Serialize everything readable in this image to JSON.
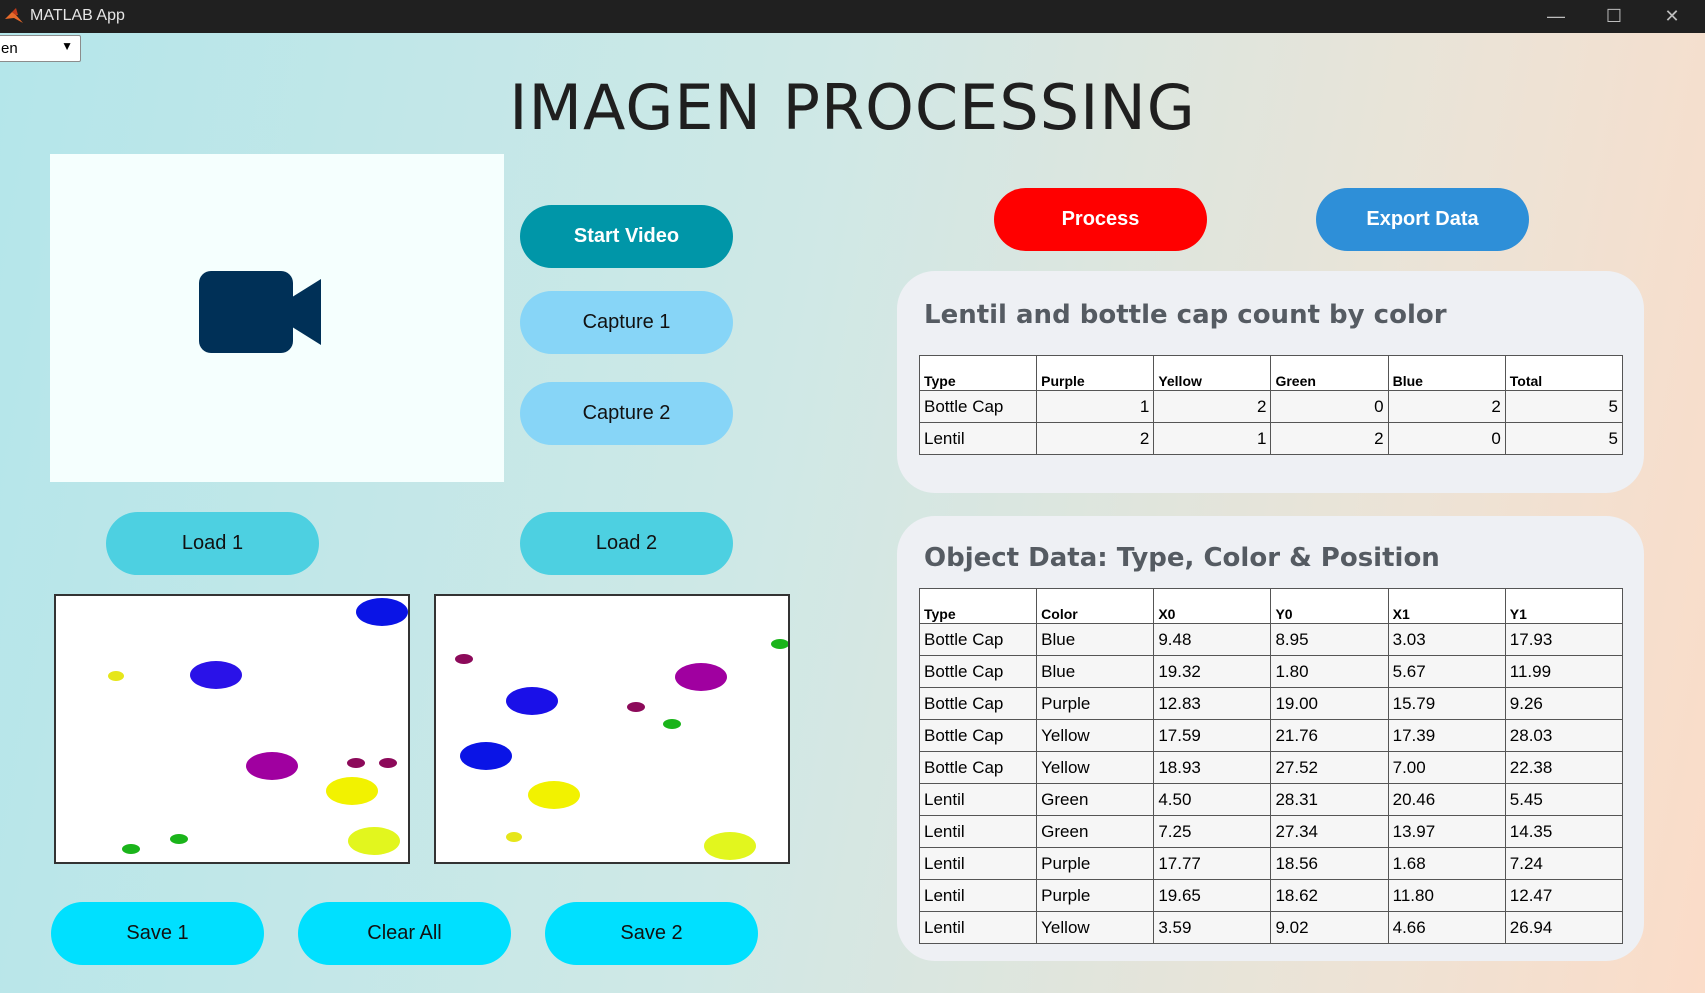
{
  "window": {
    "title": "MATLAB App",
    "minimize_glyph": "—",
    "maximize_glyph": "☐",
    "close_glyph": "✕"
  },
  "language_select": {
    "value": "en",
    "caret": "▼"
  },
  "title": "IMAGEN PROCESSING",
  "video": {
    "icon": "video-camera-icon",
    "icon_color": "#003057"
  },
  "buttons": {
    "start_video": "Start Video",
    "capture_1": "Capture 1",
    "capture_2": "Capture 2",
    "load_1": "Load 1",
    "load_2": "Load 2",
    "save_1": "Save 1",
    "clear_all": "Clear All",
    "save_2": "Save 2",
    "process": "Process",
    "export_data": "Export Data"
  },
  "colors": {
    "start_video": "#0096a8",
    "capture": "#87d5f7",
    "load": "#4dd0e1",
    "save": "#00e0ff",
    "process": "#ff0000",
    "export": "#2e8fd8"
  },
  "count_panel": {
    "title": "Lentil and bottle cap count by color",
    "columns": [
      "Type",
      "Purple",
      "Yellow",
      "Green",
      "Blue",
      "Total"
    ],
    "rows": [
      [
        "Bottle Cap",
        "1",
        "2",
        "0",
        "2",
        "5"
      ],
      [
        "Lentil",
        "2",
        "1",
        "2",
        "0",
        "5"
      ]
    ]
  },
  "object_panel": {
    "title": "Object Data: Type, Color & Position",
    "columns": [
      "Type",
      "Color",
      "X0",
      "Y0",
      "X1",
      "Y1"
    ],
    "rows": [
      [
        "Bottle Cap",
        "Blue",
        "9.48",
        "8.95",
        "3.03",
        "17.93"
      ],
      [
        "Bottle Cap",
        "Blue",
        "19.32",
        "1.80",
        "5.67",
        "11.99"
      ],
      [
        "Bottle Cap",
        "Purple",
        "12.83",
        "19.00",
        "15.79",
        "9.26"
      ],
      [
        "Bottle Cap",
        "Yellow",
        "17.59",
        "21.76",
        "17.39",
        "28.03"
      ],
      [
        "Bottle Cap",
        "Yellow",
        "18.93",
        "27.52",
        "7.00",
        "22.38"
      ],
      [
        "Lentil",
        "Green",
        "4.50",
        "28.31",
        "20.46",
        "5.45"
      ],
      [
        "Lentil",
        "Green",
        "7.25",
        "27.34",
        "13.97",
        "14.35"
      ],
      [
        "Lentil",
        "Purple",
        "17.77",
        "18.56",
        "1.68",
        "7.24"
      ],
      [
        "Lentil",
        "Purple",
        "19.65",
        "18.62",
        "11.80",
        "12.47"
      ],
      [
        "Lentil",
        "Yellow",
        "3.59",
        "9.02",
        "4.66",
        "26.94"
      ]
    ]
  }
}
